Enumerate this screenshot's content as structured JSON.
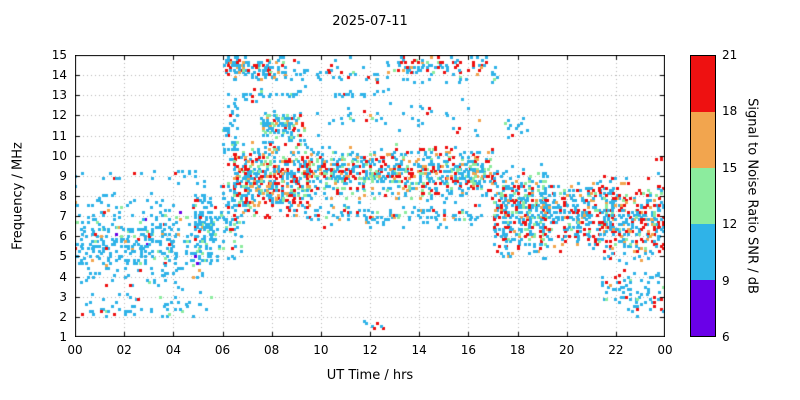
{
  "chart_data": {
    "type": "scatter",
    "title": "2025-07-11",
    "x_axis": {
      "label": "UT Time / hrs",
      "min": 0,
      "max": 24,
      "tick_values": [
        0,
        2,
        4,
        6,
        8,
        10,
        12,
        14,
        16,
        18,
        20,
        22,
        24
      ],
      "tick_labels": [
        "00",
        "02",
        "04",
        "06",
        "08",
        "10",
        "12",
        "14",
        "16",
        "18",
        "20",
        "22",
        "00"
      ]
    },
    "y_axis": {
      "label": "Frequency / MHz",
      "min": 1,
      "max": 15,
      "ticks": [
        1,
        2,
        3,
        4,
        5,
        6,
        7,
        8,
        9,
        10,
        11,
        12,
        13,
        14,
        15
      ]
    },
    "colorbar": {
      "label": "Signal to Noise Ratio SNR / dB",
      "min": 6,
      "max": 21,
      "ticks": [
        6,
        9,
        12,
        15,
        18,
        21
      ],
      "segments": [
        {
          "from": 18,
          "to": 21,
          "color": "#ee1111"
        },
        {
          "from": 15,
          "to": 18,
          "color": "#f2a54e"
        },
        {
          "from": 12,
          "to": 15,
          "color": "#8cec9e"
        },
        {
          "from": 9,
          "to": 12,
          "color": "#2fb3e8"
        },
        {
          "from": 6,
          "to": 9,
          "color": "#6a00e8"
        }
      ]
    },
    "grid": true,
    "legend": "colorbar-right",
    "marker_px": 3,
    "seed": 42,
    "palette_order": [
      "cyan",
      "green",
      "orange",
      "red",
      "purple"
    ],
    "palette": {
      "cyan": "#2fb3e8",
      "green": "#8cec9e",
      "orange": "#f2a54e",
      "red": "#ee1111",
      "purple": "#6a00e8"
    },
    "clusters": [
      {
        "t": [
          0.0,
          5.6
        ],
        "f": [
          3.2,
          8.3
        ],
        "n": 420,
        "w": [
          0.84,
          0.07,
          0.04,
          0.04,
          0.01
        ]
      },
      {
        "t": [
          0.0,
          5.6
        ],
        "f": [
          1.9,
          3.2
        ],
        "n": 55,
        "w": [
          0.9,
          0.05,
          0.0,
          0.05,
          0.0
        ]
      },
      {
        "t": [
          0.0,
          5.0
        ],
        "f": [
          8.4,
          9.6
        ],
        "n": 25,
        "w": [
          0.92,
          0.04,
          0.0,
          0.04,
          0.0
        ]
      },
      {
        "t": [
          4.8,
          6.8
        ],
        "f": [
          4.5,
          9.0
        ],
        "n": 160,
        "w": [
          0.8,
          0.08,
          0.05,
          0.07,
          0.0
        ]
      },
      {
        "t": [
          6.0,
          6.6
        ],
        "f": [
          9.0,
          13.5
        ],
        "n": 40,
        "w": [
          0.9,
          0.05,
          0.0,
          0.05,
          0.0
        ]
      },
      {
        "t": [
          6.4,
          9.6
        ],
        "f": [
          6.8,
          10.8
        ],
        "n": 520,
        "w": [
          0.45,
          0.15,
          0.14,
          0.26,
          0.0
        ]
      },
      {
        "t": [
          7.6,
          9.3
        ],
        "f": [
          10.5,
          12.4
        ],
        "n": 130,
        "w": [
          0.55,
          0.2,
          0.08,
          0.17,
          0.0
        ]
      },
      {
        "t": [
          6.1,
          8.6
        ],
        "f": [
          13.7,
          15.0
        ],
        "n": 130,
        "w": [
          0.6,
          0.06,
          0.09,
          0.25,
          0.0
        ]
      },
      {
        "t": [
          8.6,
          17.2
        ],
        "f": [
          13.4,
          15.0
        ],
        "n": 100,
        "w": [
          0.68,
          0.1,
          0.05,
          0.17,
          0.0
        ]
      },
      {
        "t": [
          6.3,
          9.2
        ],
        "f": [
          12.7,
          13.3
        ],
        "n": 30,
        "w": [
          0.9,
          0.05,
          0.0,
          0.05,
          0.0
        ]
      },
      {
        "t": [
          10.0,
          12.8
        ],
        "f": [
          12.9,
          13.3
        ],
        "n": 20,
        "w": [
          0.95,
          0.0,
          0.0,
          0.05,
          0.0
        ]
      },
      {
        "t": [
          13.2,
          16.8
        ],
        "f": [
          14.2,
          15.0
        ],
        "n": 55,
        "w": [
          0.4,
          0.08,
          0.12,
          0.4,
          0.0
        ]
      },
      {
        "t": [
          9.4,
          17.0
        ],
        "f": [
          7.8,
          10.6
        ],
        "n": 700,
        "w": [
          0.5,
          0.18,
          0.11,
          0.21,
          0.0
        ]
      },
      {
        "t": [
          9.4,
          16.6
        ],
        "f": [
          6.4,
          7.8
        ],
        "n": 130,
        "w": [
          0.8,
          0.08,
          0.04,
          0.08,
          0.0
        ]
      },
      {
        "t": [
          9.8,
          16.5
        ],
        "f": [
          10.8,
          13.0
        ],
        "n": 45,
        "w": [
          0.85,
          0.05,
          0.02,
          0.08,
          0.0
        ]
      },
      {
        "t": [
          17.0,
          19.2
        ],
        "f": [
          4.8,
          9.6
        ],
        "n": 380,
        "w": [
          0.55,
          0.15,
          0.1,
          0.2,
          0.0
        ]
      },
      {
        "t": [
          17.4,
          18.4
        ],
        "f": [
          10.8,
          12.0
        ],
        "n": 12,
        "w": [
          0.8,
          0.1,
          0.0,
          0.1,
          0.0
        ]
      },
      {
        "t": [
          19.0,
          21.8
        ],
        "f": [
          5.2,
          9.0
        ],
        "n": 300,
        "w": [
          0.6,
          0.12,
          0.08,
          0.2,
          0.0
        ]
      },
      {
        "t": [
          21.5,
          24.0
        ],
        "f": [
          4.5,
          9.2
        ],
        "n": 320,
        "w": [
          0.5,
          0.1,
          0.1,
          0.3,
          0.0
        ]
      },
      {
        "t": [
          21.3,
          24.0
        ],
        "f": [
          1.9,
          4.5
        ],
        "n": 80,
        "w": [
          0.8,
          0.05,
          0.02,
          0.13,
          0.0
        ]
      },
      {
        "t": [
          11.8,
          12.6
        ],
        "f": [
          1.4,
          1.8
        ],
        "n": 8,
        "w": [
          0.5,
          0.0,
          0.0,
          0.5,
          0.0
        ]
      },
      {
        "t": [
          23.5,
          24.0
        ],
        "f": [
          9.6,
          10.0
        ],
        "n": 3,
        "w": [
          0.0,
          0.0,
          0.0,
          1.0,
          0.0
        ]
      }
    ]
  }
}
